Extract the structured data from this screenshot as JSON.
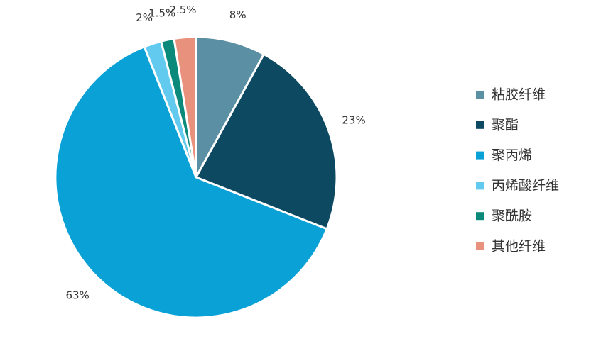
{
  "chart_data": {
    "type": "pie",
    "categories": [
      "粘胶纤维",
      "聚酯",
      "聚丙烯",
      "丙烯酸纤维",
      "聚酰胺",
      "其他纤维"
    ],
    "values": [
      8,
      23,
      63,
      2,
      1.5,
      2.5
    ],
    "value_labels": [
      "8%",
      "23%",
      "63%",
      "2%",
      "1.5%",
      "2.5%"
    ],
    "colors": [
      "#5b8fa3",
      "#0d4a62",
      "#0aa2d6",
      "#62caee",
      "#0b8a7b",
      "#e8917c"
    ],
    "legend": "right"
  }
}
